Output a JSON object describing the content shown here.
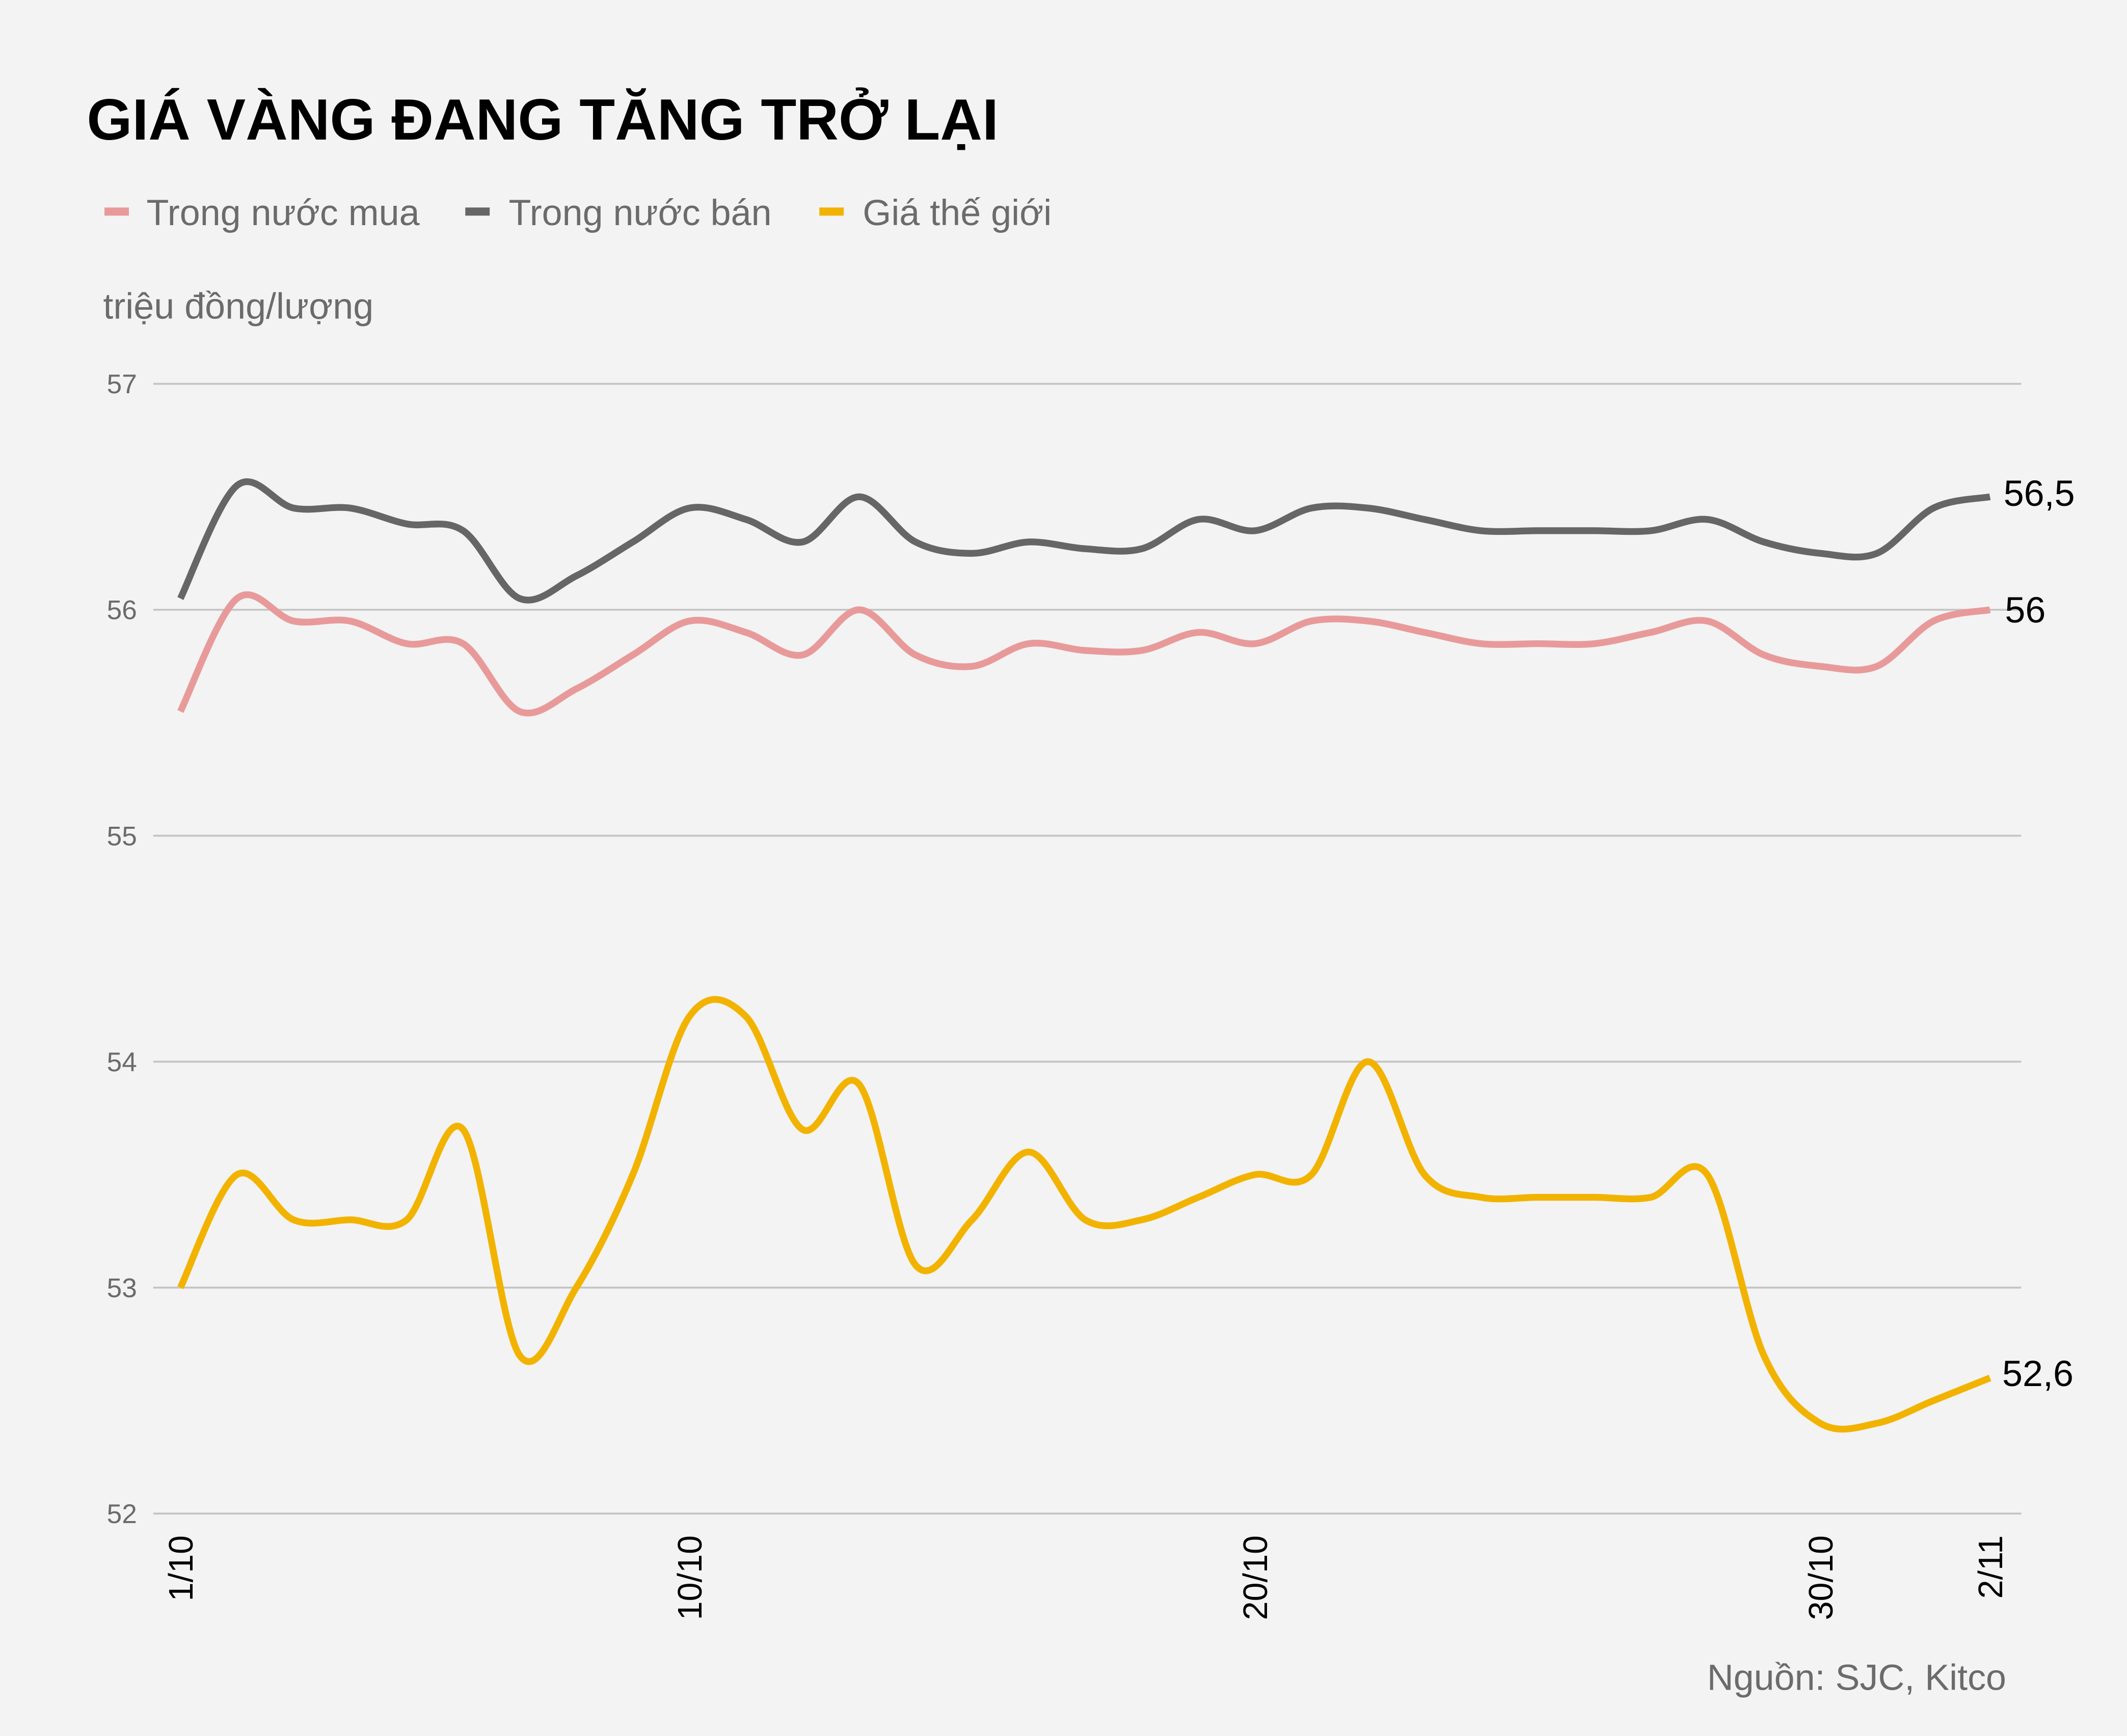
{
  "header": {
    "title": "GIÁ VÀNG ĐANG TĂNG TRỞ LẠI",
    "unit_label": "triệu đồng/lượng"
  },
  "legend": [
    {
      "label": "Trong nước mua",
      "color": "#E89A9A"
    },
    {
      "label": "Trong nước bán",
      "color": "#666666"
    },
    {
      "label": "Giá thế giới",
      "color": "#F2B300"
    }
  ],
  "footer": {
    "source": "Nguồn: SJC, Kitco"
  },
  "colors": {
    "background": "#F3F3F3",
    "grid": "#C4C4C4",
    "buy": "#E89A9A",
    "sell": "#666666",
    "world": "#F2B300"
  },
  "end_labels": {
    "sell": "56,5",
    "buy": "56",
    "world": "52,6"
  },
  "chart_data": {
    "type": "line",
    "title": "GIÁ VÀNG ĐANG TĂNG TRỞ LẠI",
    "xlabel": "",
    "ylabel": "triệu đồng/lượng",
    "ylim": [
      52,
      57
    ],
    "yticks": [
      52,
      53,
      54,
      55,
      56,
      57
    ],
    "grid": true,
    "legend_position": "top-left",
    "x_tick_labels": [
      "1/10",
      "10/10",
      "20/10",
      "30/10",
      "2/11"
    ],
    "x": [
      "1/10",
      "2/10",
      "3/10",
      "4/10",
      "5/10",
      "6/10",
      "7/10",
      "8/10",
      "9/10",
      "10/10",
      "11/10",
      "12/10",
      "13/10",
      "14/10",
      "15/10",
      "16/10",
      "17/10",
      "18/10",
      "19/10",
      "20/10",
      "21/10",
      "22/10",
      "23/10",
      "24/10",
      "25/10",
      "26/10",
      "27/10",
      "28/10",
      "29/10",
      "30/10",
      "31/10",
      "1/11",
      "2/11"
    ],
    "series": [
      {
        "name": "Trong nước mua",
        "color": "#E89A9A",
        "values": [
          55.55,
          56.05,
          55.95,
          55.95,
          55.85,
          55.85,
          55.55,
          55.65,
          55.8,
          55.95,
          55.9,
          55.8,
          56.0,
          55.8,
          55.75,
          55.85,
          55.82,
          55.82,
          55.9,
          55.85,
          55.95,
          55.95,
          55.9,
          55.85,
          55.85,
          55.85,
          55.9,
          55.95,
          55.8,
          55.75,
          55.75,
          55.95,
          56.0
        ]
      },
      {
        "name": "Trong nước bán",
        "color": "#666666",
        "values": [
          56.05,
          56.55,
          56.45,
          56.45,
          56.38,
          56.35,
          56.05,
          56.15,
          56.3,
          56.45,
          56.4,
          56.3,
          56.5,
          56.3,
          56.25,
          56.3,
          56.27,
          56.27,
          56.4,
          56.35,
          56.45,
          56.45,
          56.4,
          56.35,
          56.35,
          56.35,
          56.35,
          56.4,
          56.3,
          56.25,
          56.25,
          56.45,
          56.5
        ]
      },
      {
        "name": "Giá thế giới",
        "color": "#F2B300",
        "values": [
          53.0,
          53.5,
          53.3,
          53.3,
          53.3,
          53.7,
          52.7,
          53.0,
          53.5,
          54.2,
          54.2,
          53.7,
          53.9,
          53.1,
          53.3,
          53.6,
          53.3,
          53.3,
          53.4,
          53.5,
          53.5,
          54.0,
          53.5,
          53.4,
          53.4,
          53.4,
          53.4,
          53.5,
          52.7,
          52.4,
          52.4,
          52.5,
          52.6
        ]
      }
    ],
    "annotations": [
      {
        "series": "Trong nước bán",
        "x": "2/11",
        "text": "56,5"
      },
      {
        "series": "Trong nước mua",
        "x": "2/11",
        "text": "56"
      },
      {
        "series": "Giá thế giới",
        "x": "2/11",
        "text": "52,6"
      }
    ]
  }
}
